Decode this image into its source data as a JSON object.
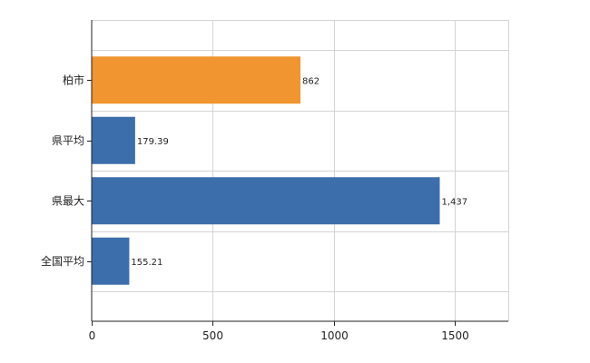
{
  "chart_data": {
    "type": "bar",
    "orientation": "horizontal",
    "categories": [
      "柏市",
      "県平均",
      "県最大",
      "全国平均"
    ],
    "values": [
      862,
      179.39,
      1437,
      155.21
    ],
    "data_labels": [
      "862",
      "179.39",
      "1,437",
      "155.21"
    ],
    "bar_colors": [
      "#f0952f",
      "#3d6eac",
      "#3d6eac",
      "#3d6eac"
    ],
    "xlim": [
      0,
      1720
    ],
    "x_ticks": [
      0,
      500,
      1000,
      1500
    ],
    "x_tick_labels": [
      "0",
      "500",
      "1000",
      "1500"
    ],
    "grid": true,
    "legend": false
  }
}
